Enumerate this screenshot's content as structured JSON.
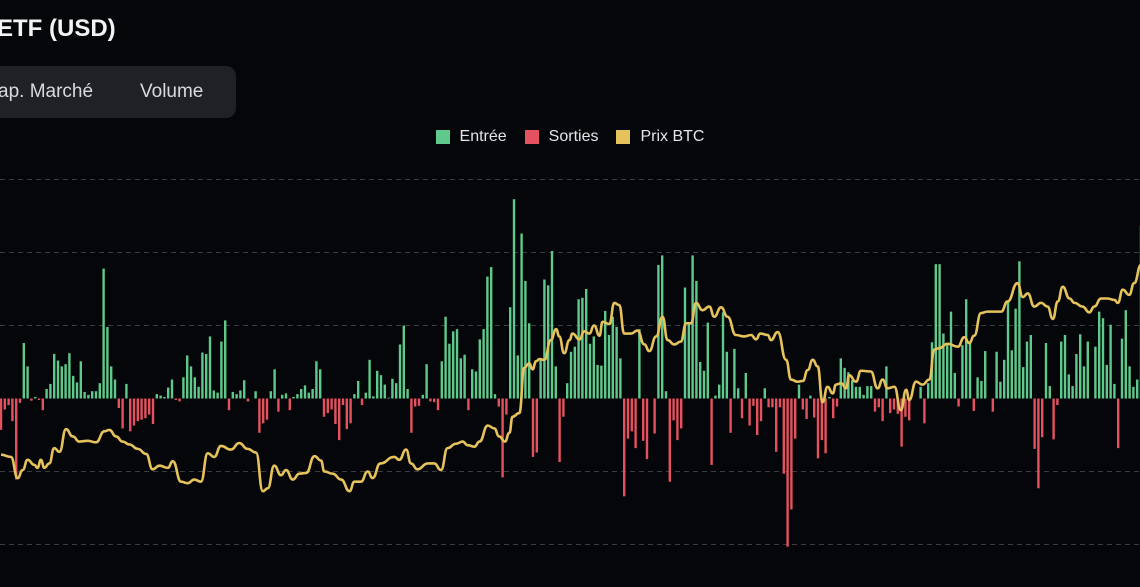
{
  "header": {
    "title": "ETF (USD)"
  },
  "tabs": [
    {
      "label": "ap. Marché"
    },
    {
      "label": "Volume"
    }
  ],
  "colors": {
    "inflow": "#5ec98b",
    "outflow": "#e3525e",
    "price": "#e6c25c",
    "grid": "#3a3c42",
    "background": "#050609"
  },
  "chart_data": {
    "type": "bar",
    "title": "",
    "xlabel": "",
    "ylabel": "",
    "ylim": [
      -2,
      3
    ],
    "grid": true,
    "legend_position": "top-center",
    "legend": [
      "Entrée",
      "Sorties",
      "Prix BTC"
    ],
    "series": [
      {
        "name": "Entrée / Sorties",
        "type": "bar",
        "values": [
          -0.43,
          -0.15,
          -0.09,
          -0.31,
          -1.11,
          -0.06,
          0.76,
          0.44,
          -0.03,
          0.02,
          -0.02,
          -0.16,
          0.13,
          0.2,
          0.61,
          0.52,
          0.44,
          0.47,
          0.62,
          0.31,
          0.22,
          0.51,
          0.09,
          0.05,
          0.1,
          0.1,
          0.21,
          1.78,
          0.98,
          0.44,
          0.26,
          -0.13,
          -0.41,
          0.2,
          -0.45,
          -0.37,
          -0.31,
          -0.29,
          -0.27,
          -0.22,
          -0.35,
          0.06,
          0.04,
          0.02,
          0.15,
          0.26,
          -0.02,
          -0.04,
          0.29,
          0.59,
          0.44,
          0.29,
          0.16,
          0.63,
          0.61,
          0.85,
          0.11,
          0.08,
          0.78,
          1.07,
          -0.16,
          0.09,
          0.06,
          0.11,
          0.25,
          -0.04,
          0,
          0.1,
          -0.47,
          -0.34,
          -0.29,
          0.1,
          0.4,
          -0.18,
          0.05,
          0.07,
          -0.16,
          0.02,
          0.06,
          0.13,
          0.18,
          0.08,
          0.13,
          0.51,
          0.4,
          -0.25,
          -0.2,
          -0.15,
          -0.35,
          -0.57,
          -0.09,
          -0.42,
          -0.34,
          0.06,
          0.24,
          -0.09,
          0.08,
          0.53,
          0.03,
          0.38,
          0.32,
          0.19,
          0.01,
          0.27,
          0.21,
          0.74,
          1.0,
          0.13,
          -0.47,
          -0.11,
          -0.1,
          0.05,
          0.47,
          -0.04,
          -0.05,
          -0.16,
          0.51,
          1.12,
          0.75,
          0.92,
          0.95,
          0.55,
          0.6,
          -0.16,
          0.4,
          0.37,
          0.81,
          0.95,
          1.67,
          1.8,
          0.06,
          -0.11,
          -1.08,
          -0.22,
          1.25,
          2.73,
          0.59,
          2.26,
          1.61,
          1.03,
          -0.8,
          -0.74,
          0.54,
          1.63,
          1.55,
          2.02,
          0.44,
          -0.87,
          -0.25,
          0.21,
          0.64,
          0.71,
          1.36,
          1.38,
          1.5,
          0.75,
          0.85,
          0.46,
          0.45,
          1.2,
          0.87,
          1.12,
          0.98,
          0.55,
          -1.34,
          -0.55,
          -0.45,
          -0.68,
          0.95,
          -0.58,
          -0.83,
          0,
          -0.48,
          1.83,
          1.96,
          0.1,
          -1.14,
          -0.3,
          -0.57,
          -0.41,
          1.52,
          1.03,
          1.96,
          1.61,
          0.5,
          0.38,
          1.04,
          -0.91,
          0.04,
          0.19,
          1.18,
          0.64,
          -0.47,
          0.68,
          0.14,
          -0.27,
          0.35,
          -0.37,
          -0.1,
          -0.5,
          -0.31,
          0.14,
          -0.12,
          -0.12,
          -0.73,
          -0.12,
          -1.03,
          -2.03,
          -1.52,
          -0.55,
          0.19,
          -0.15,
          -0.28,
          0.04,
          -0.26,
          -0.82,
          -0.57,
          -0.75,
          0.02,
          -0.27,
          -0.11,
          0.55,
          0.42,
          0.36,
          0.25,
          0.16,
          0.16,
          0.05,
          0.17,
          0.17,
          -0.18,
          -0.12,
          -0.31,
          0.44,
          -0.2,
          -0.15,
          -0.21,
          -0.66,
          -0.25,
          -0.3,
          0,
          0,
          0.16,
          -0.34,
          0.21,
          0.77,
          1.84,
          1.84,
          0.89,
          0.74,
          1.19,
          0.35,
          -0.11,
          0.73,
          1.36,
          0.78,
          -0.17,
          0.29,
          0.24,
          0.65,
          0,
          -0.18,
          0.64,
          0.23,
          0.53,
          1.34,
          0.66,
          1.23,
          1.88,
          0.43,
          0.78,
          0.87,
          -0.69,
          -1.23,
          -0.53,
          0.76,
          0.17,
          -0.56,
          -0.09,
          0.78,
          0.87,
          0.33,
          0.17,
          0.61,
          0.88,
          0.44,
          0.78,
          0,
          0.71,
          1.19,
          1.1,
          0.46,
          1.01,
          0.2,
          -0.68,
          0.82,
          1.21,
          0.44,
          0.16,
          0.26,
          2.37
        ]
      },
      {
        "name": "Prix BTC",
        "type": "line",
        "points": [
          [
            0,
            -0.77
          ],
          [
            2.6,
            -0.8
          ],
          [
            4.4,
            -1.09
          ],
          [
            5.7,
            -0.98
          ],
          [
            7,
            -0.84
          ],
          [
            8.8,
            -0.91
          ],
          [
            9.6,
            -0.95
          ],
          [
            10.5,
            -0.84
          ],
          [
            11.4,
            -0.95
          ],
          [
            12.7,
            -0.89
          ],
          [
            14,
            -0.68
          ],
          [
            15.4,
            -0.73
          ],
          [
            17.1,
            -0.42
          ],
          [
            18.9,
            -0.52
          ],
          [
            20.6,
            -0.59
          ],
          [
            22.8,
            -0.58
          ],
          [
            25,
            -0.6
          ],
          [
            27.2,
            -0.45
          ],
          [
            28.5,
            -0.43
          ],
          [
            30.3,
            -0.52
          ],
          [
            32,
            -0.59
          ],
          [
            33.8,
            -0.63
          ],
          [
            36,
            -0.69
          ],
          [
            38.2,
            -0.76
          ],
          [
            39.9,
            -0.97
          ],
          [
            41.7,
            -0.92
          ],
          [
            43.9,
            -0.95
          ],
          [
            45.2,
            -0.86
          ],
          [
            47.4,
            -1.14
          ],
          [
            49.1,
            -1.16
          ],
          [
            50.9,
            -1.11
          ],
          [
            52.6,
            -1.14
          ],
          [
            54.4,
            -0.75
          ],
          [
            56.1,
            -0.8
          ],
          [
            57.9,
            -0.65
          ],
          [
            60.5,
            -0.7
          ],
          [
            62.7,
            -0.61
          ],
          [
            64.9,
            -0.69
          ],
          [
            67.1,
            -0.74
          ],
          [
            68.9,
            -1.27
          ],
          [
            70.2,
            -1.23
          ],
          [
            71.9,
            -0.92
          ],
          [
            73.7,
            -1.05
          ],
          [
            75,
            -0.98
          ],
          [
            76.8,
            -1.11
          ],
          [
            78.5,
            -1.03
          ],
          [
            80.3,
            -1.02
          ],
          [
            82.5,
            -0.79
          ],
          [
            84.2,
            -0.85
          ],
          [
            85.1,
            -1
          ],
          [
            87.3,
            -1.03
          ],
          [
            89.5,
            -1.11
          ],
          [
            91.7,
            -1.27
          ],
          [
            93,
            -1.14
          ],
          [
            94.7,
            -1.14
          ],
          [
            96.5,
            -1
          ],
          [
            97.8,
            -1.09
          ],
          [
            99.8,
            -0.89
          ],
          [
            103.5,
            -0.8
          ],
          [
            104.8,
            -0.84
          ],
          [
            106.6,
            -0.7
          ],
          [
            107.9,
            -0.89
          ],
          [
            109.6,
            -0.97
          ],
          [
            112.3,
            -0.89
          ],
          [
            114,
            -0.89
          ],
          [
            115.8,
            -0.98
          ],
          [
            117.5,
            -0.68
          ],
          [
            119.7,
            -0.62
          ],
          [
            121.5,
            -0.59
          ],
          [
            122.8,
            -0.64
          ],
          [
            124.6,
            -0.66
          ],
          [
            125.9,
            -0.59
          ],
          [
            128.1,
            -0.37
          ],
          [
            129.8,
            -0.41
          ],
          [
            131.1,
            -0.52
          ],
          [
            132.6,
            -0.59
          ],
          [
            133.8,
            -0.47
          ],
          [
            134.6,
            -0.25
          ],
          [
            136.4,
            -0.2
          ],
          [
            137.7,
            0.42
          ],
          [
            139,
            0.48
          ],
          [
            139.9,
            0.4
          ],
          [
            140.8,
            0.51
          ],
          [
            141.7,
            0.54
          ],
          [
            143,
            0.53
          ],
          [
            144.7,
            0.8
          ],
          [
            146.1,
            0.95
          ],
          [
            146.9,
            0.85
          ],
          [
            148.2,
            0.62
          ],
          [
            149.6,
            0.8
          ],
          [
            150.4,
            0.89
          ],
          [
            152.2,
            0.81
          ],
          [
            153.5,
            0.92
          ],
          [
            154.8,
            0.89
          ],
          [
            156.1,
            1
          ],
          [
            157.5,
            0.86
          ],
          [
            158.3,
            1.05
          ],
          [
            160.1,
            1.02
          ],
          [
            161.4,
            1.31
          ],
          [
            162.7,
            1.28
          ],
          [
            164,
            0.89
          ],
          [
            165.8,
            0.89
          ],
          [
            167.5,
            0.93
          ],
          [
            169.3,
            0.74
          ],
          [
            170.6,
            0.65
          ],
          [
            172.4,
            0.85
          ],
          [
            174.1,
            1.12
          ],
          [
            175.4,
            0.8
          ],
          [
            177.2,
            0.74
          ],
          [
            178.9,
            0.78
          ],
          [
            180.3,
            1.03
          ],
          [
            181.6,
            1.03
          ],
          [
            182.9,
            1.31
          ],
          [
            184.6,
            1.21
          ],
          [
            186.4,
            1.26
          ],
          [
            187.7,
            1.12
          ],
          [
            189.5,
            1.25
          ],
          [
            191.2,
            1.12
          ],
          [
            193.4,
            0.87
          ],
          [
            195.6,
            0.85
          ],
          [
            197.4,
            0.87
          ],
          [
            198.7,
            0.81
          ],
          [
            199.8,
            0.89
          ],
          [
            201.8,
            0.87
          ],
          [
            202.6,
            0.8
          ],
          [
            204.4,
            0.91
          ],
          [
            206.6,
            0.53
          ],
          [
            207.9,
            0.26
          ],
          [
            209.6,
            0.23
          ],
          [
            211,
            0.24
          ],
          [
            212.3,
            0.39
          ],
          [
            213.6,
            0.53
          ],
          [
            214.9,
            0.44
          ],
          [
            216.2,
            -0.05
          ],
          [
            217.5,
            0.16
          ],
          [
            218.9,
            0.07
          ],
          [
            219.7,
            0.19
          ],
          [
            221.1,
            0.21
          ],
          [
            222.4,
            0.14
          ],
          [
            223.2,
            0.32
          ],
          [
            225,
            0.23
          ],
          [
            226.3,
            0.38
          ],
          [
            228.9,
            0.37
          ],
          [
            230.7,
            0.14
          ],
          [
            232,
            0.26
          ],
          [
            233.3,
            0.14
          ],
          [
            235.1,
            0.16
          ],
          [
            236.8,
            -0.16
          ],
          [
            238.2,
            0.12
          ],
          [
            239,
            -0.02
          ],
          [
            240.8,
            0.23
          ],
          [
            242.5,
            0.19
          ],
          [
            244.3,
            0.26
          ],
          [
            245.6,
            0.67
          ],
          [
            246.9,
            0.69
          ],
          [
            249.1,
            0.75
          ],
          [
            251.8,
            0.71
          ],
          [
            253.5,
            0.84
          ],
          [
            254.8,
            0.76
          ],
          [
            256.1,
            0.86
          ],
          [
            257.9,
            1.17
          ],
          [
            259.6,
            1.19
          ],
          [
            261.4,
            1.19
          ],
          [
            263.2,
            1.19
          ],
          [
            264.9,
            1.33
          ],
          [
            267.5,
            1.58
          ],
          [
            268.9,
            1.39
          ],
          [
            270.2,
            1.44
          ],
          [
            271.9,
            1.26
          ],
          [
            273.7,
            1.31
          ],
          [
            275.4,
            1.26
          ],
          [
            276.8,
            1.09
          ],
          [
            278.1,
            1.33
          ],
          [
            279.4,
            1.53
          ],
          [
            281.2,
            1.37
          ],
          [
            282.5,
            1.31
          ],
          [
            284.6,
            1.26
          ],
          [
            286.4,
            1.18
          ],
          [
            287.7,
            1.26
          ],
          [
            289.5,
            1.37
          ],
          [
            291.2,
            1.37
          ],
          [
            293,
            1.35
          ],
          [
            293.9,
            1.31
          ],
          [
            295.2,
            1.49
          ],
          [
            296.9,
            1.42
          ],
          [
            298.2,
            1.58
          ],
          [
            300,
            1.83
          ]
        ]
      }
    ]
  }
}
